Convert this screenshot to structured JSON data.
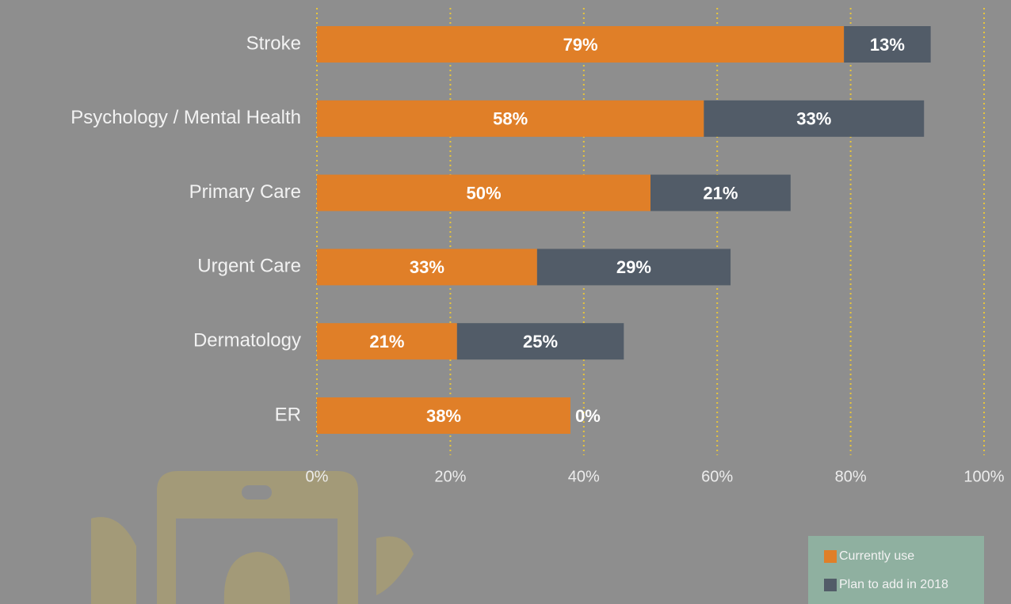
{
  "chart_data": {
    "type": "stacked-barh",
    "categories": [
      "Stroke",
      "Psychology / Mental Health",
      "Primary Care",
      "Urgent Care",
      "Dermatology",
      "ER"
    ],
    "series": [
      {
        "name": "Currently use",
        "color": "#e07f28",
        "values": [
          79,
          58,
          50,
          33,
          21,
          38
        ],
        "value_labels": [
          "79%",
          "58%",
          "50%",
          "33%",
          "21%",
          "38%"
        ]
      },
      {
        "name": "Plan to add in 2018",
        "color": "#525c68",
        "values": [
          13,
          33,
          21,
          29,
          25,
          0
        ],
        "value_labels": [
          "13%",
          "33%",
          "21%",
          "29%",
          "25%",
          "0%"
        ]
      }
    ],
    "xlim": [
      0,
      100
    ],
    "xticks": [
      {
        "value": 0,
        "label": "0%"
      },
      {
        "value": 20,
        "label": "20%"
      },
      {
        "value": 40,
        "label": "40%"
      },
      {
        "value": 60,
        "label": "60%"
      },
      {
        "value": 80,
        "label": "80%"
      },
      {
        "value": 100,
        "label": "100%"
      }
    ],
    "grid": true,
    "legend": "lower-right"
  }
}
